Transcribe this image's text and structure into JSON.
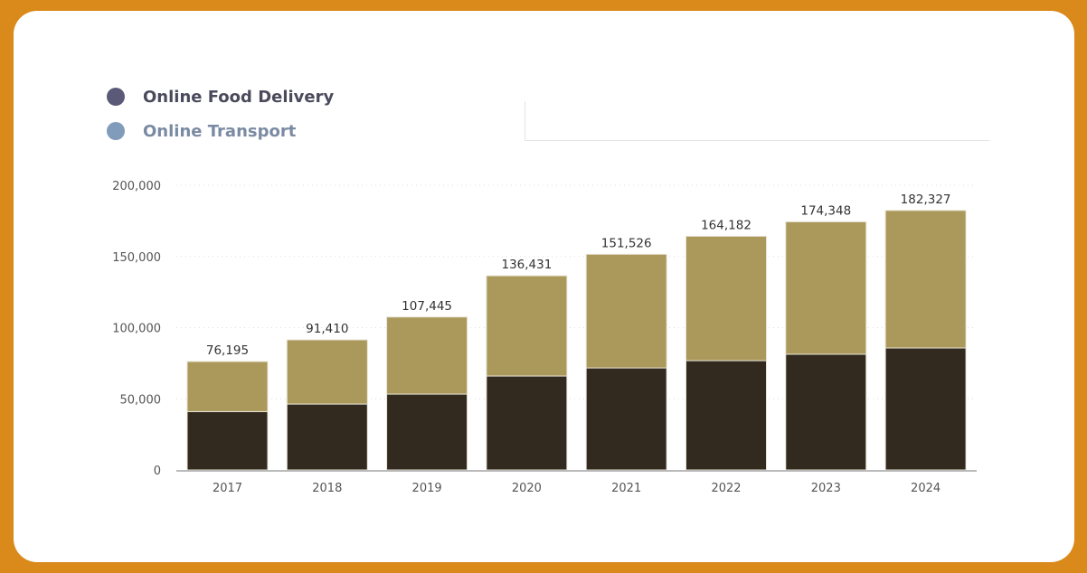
{
  "legend": {
    "items": [
      {
        "label": "Online Food Delivery",
        "color": "#5a5a78"
      },
      {
        "label": "Online Transport",
        "color": "#819bbb"
      }
    ]
  },
  "chart_data": {
    "type": "bar",
    "stacked": true,
    "categories": [
      "2017",
      "2018",
      "2019",
      "2020",
      "2021",
      "2022",
      "2023",
      "2024"
    ],
    "series": [
      {
        "name": "Online Food Delivery",
        "color": "#322a1f",
        "values": [
          41000,
          46300,
          53300,
          66000,
          71700,
          76800,
          81300,
          85700
        ]
      },
      {
        "name": "Online Transport",
        "color": "#ab985b",
        "values": [
          35195,
          45110,
          54145,
          70431,
          79826,
          87382,
          93048,
          96627
        ]
      }
    ],
    "totals": [
      76195,
      91410,
      107445,
      136431,
      151526,
      164182,
      174348,
      182327
    ],
    "total_labels": [
      "76,195",
      "91,410",
      "107,445",
      "136,431",
      "151,526",
      "164,182",
      "174,348",
      "182,327"
    ],
    "ylim": [
      0,
      200000
    ],
    "yticks": [
      0,
      50000,
      100000,
      150000,
      200000
    ],
    "ytick_labels": [
      "0",
      "50,000",
      "100,000",
      "150,000",
      "200,000"
    ],
    "grid": true,
    "legend_position": "top-left",
    "title": "",
    "xlabel": "",
    "ylabel": ""
  }
}
